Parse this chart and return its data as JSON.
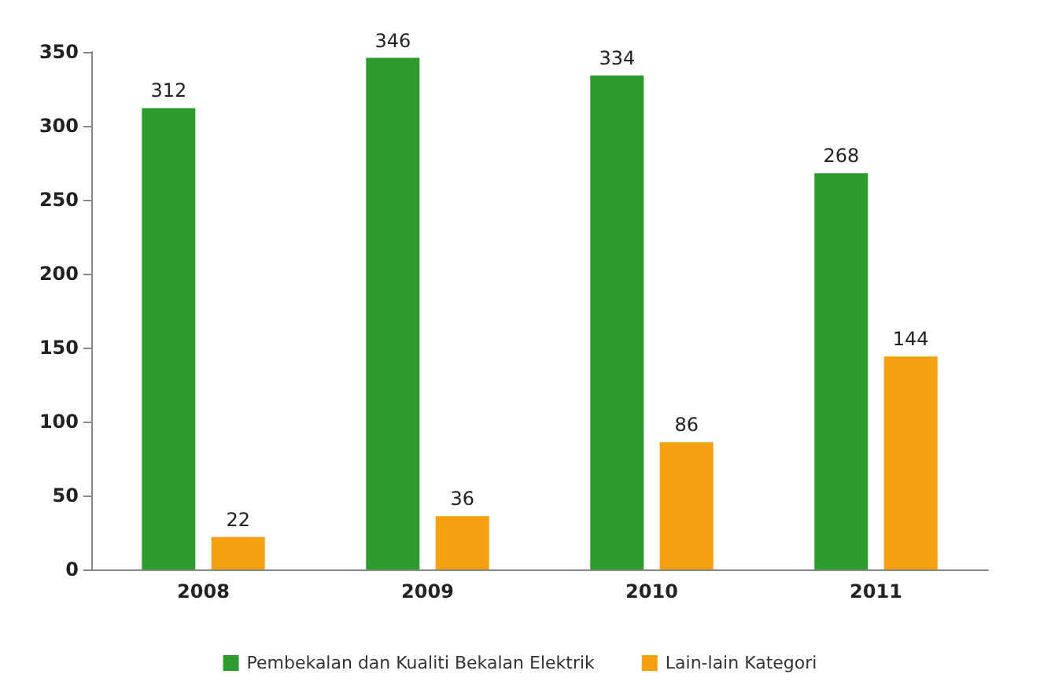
{
  "chart_data": {
    "type": "bar",
    "categories": [
      "2008",
      "2009",
      "2010",
      "2011"
    ],
    "series": [
      {
        "name": "Pembekalan dan Kualiti Bekalan Elektrik",
        "color": "#2e9b2e",
        "values": [
          312,
          346,
          334,
          268
        ]
      },
      {
        "name": "Lain-lain Kategori",
        "color": "#f4a010",
        "values": [
          22,
          36,
          86,
          144
        ]
      }
    ],
    "ylim": [
      0,
      350
    ],
    "yticks": [
      0,
      50,
      100,
      150,
      200,
      250,
      300,
      350
    ],
    "data_labels": true,
    "grid": false,
    "legend": "bottom"
  }
}
